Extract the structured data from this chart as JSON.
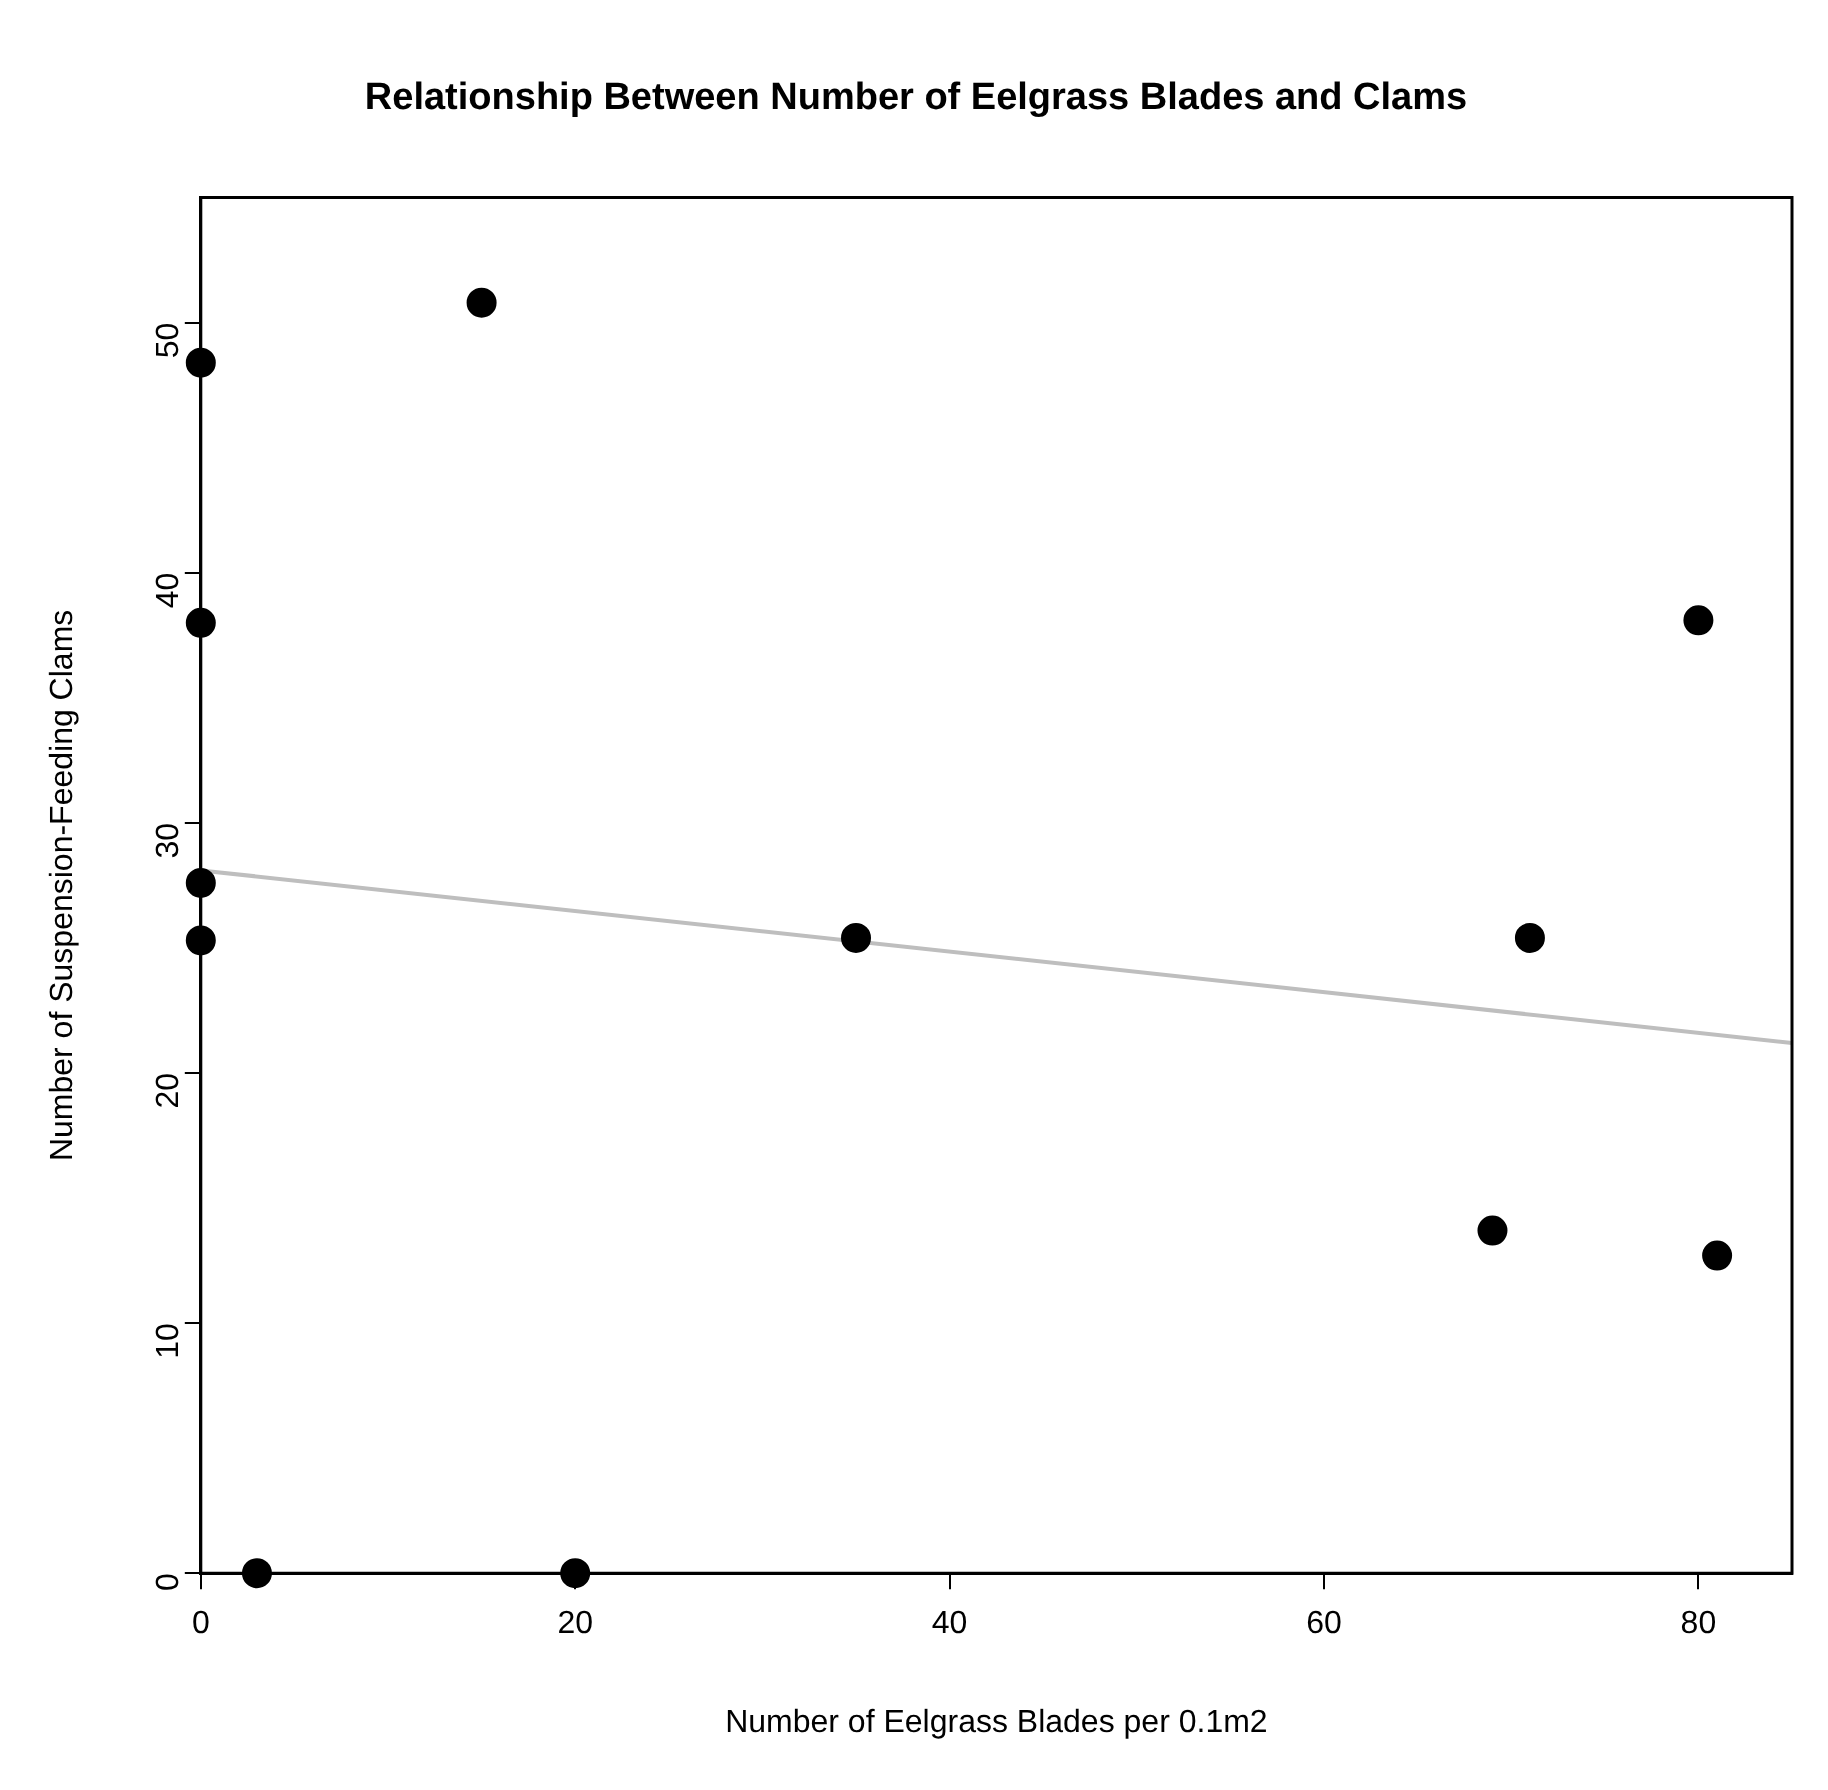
{
  "chart_data": {
    "type": "scatter",
    "title": "Relationship Between Number of Eelgrass Blades and Clams",
    "xlabel": "Number of Eelgrass Blades per 0.1m2",
    "ylabel": "Number of Suspension-Feeding Clams",
    "xlim": [
      0,
      85
    ],
    "xticks": [
      0,
      20,
      40,
      60,
      80
    ],
    "ylim": [
      0,
      55
    ],
    "yticks": [
      0,
      10,
      20,
      30,
      40,
      50
    ],
    "grid": false,
    "legend": false,
    "series": [
      {
        "marker": "circle",
        "color": "#000000",
        "x": [
          0,
          0,
          0,
          0,
          15,
          3,
          20,
          35,
          69,
          71,
          80,
          81
        ],
        "values": [
          48.4,
          38.0,
          27.6,
          25.3,
          50.8,
          0,
          0,
          25.4,
          13.7,
          25.4,
          38.1,
          12.7
        ]
      },
      {
        "type": "line",
        "color": "#bebebe",
        "x": [
          0,
          85
        ],
        "values": [
          28.1,
          21.2
        ]
      }
    ]
  }
}
